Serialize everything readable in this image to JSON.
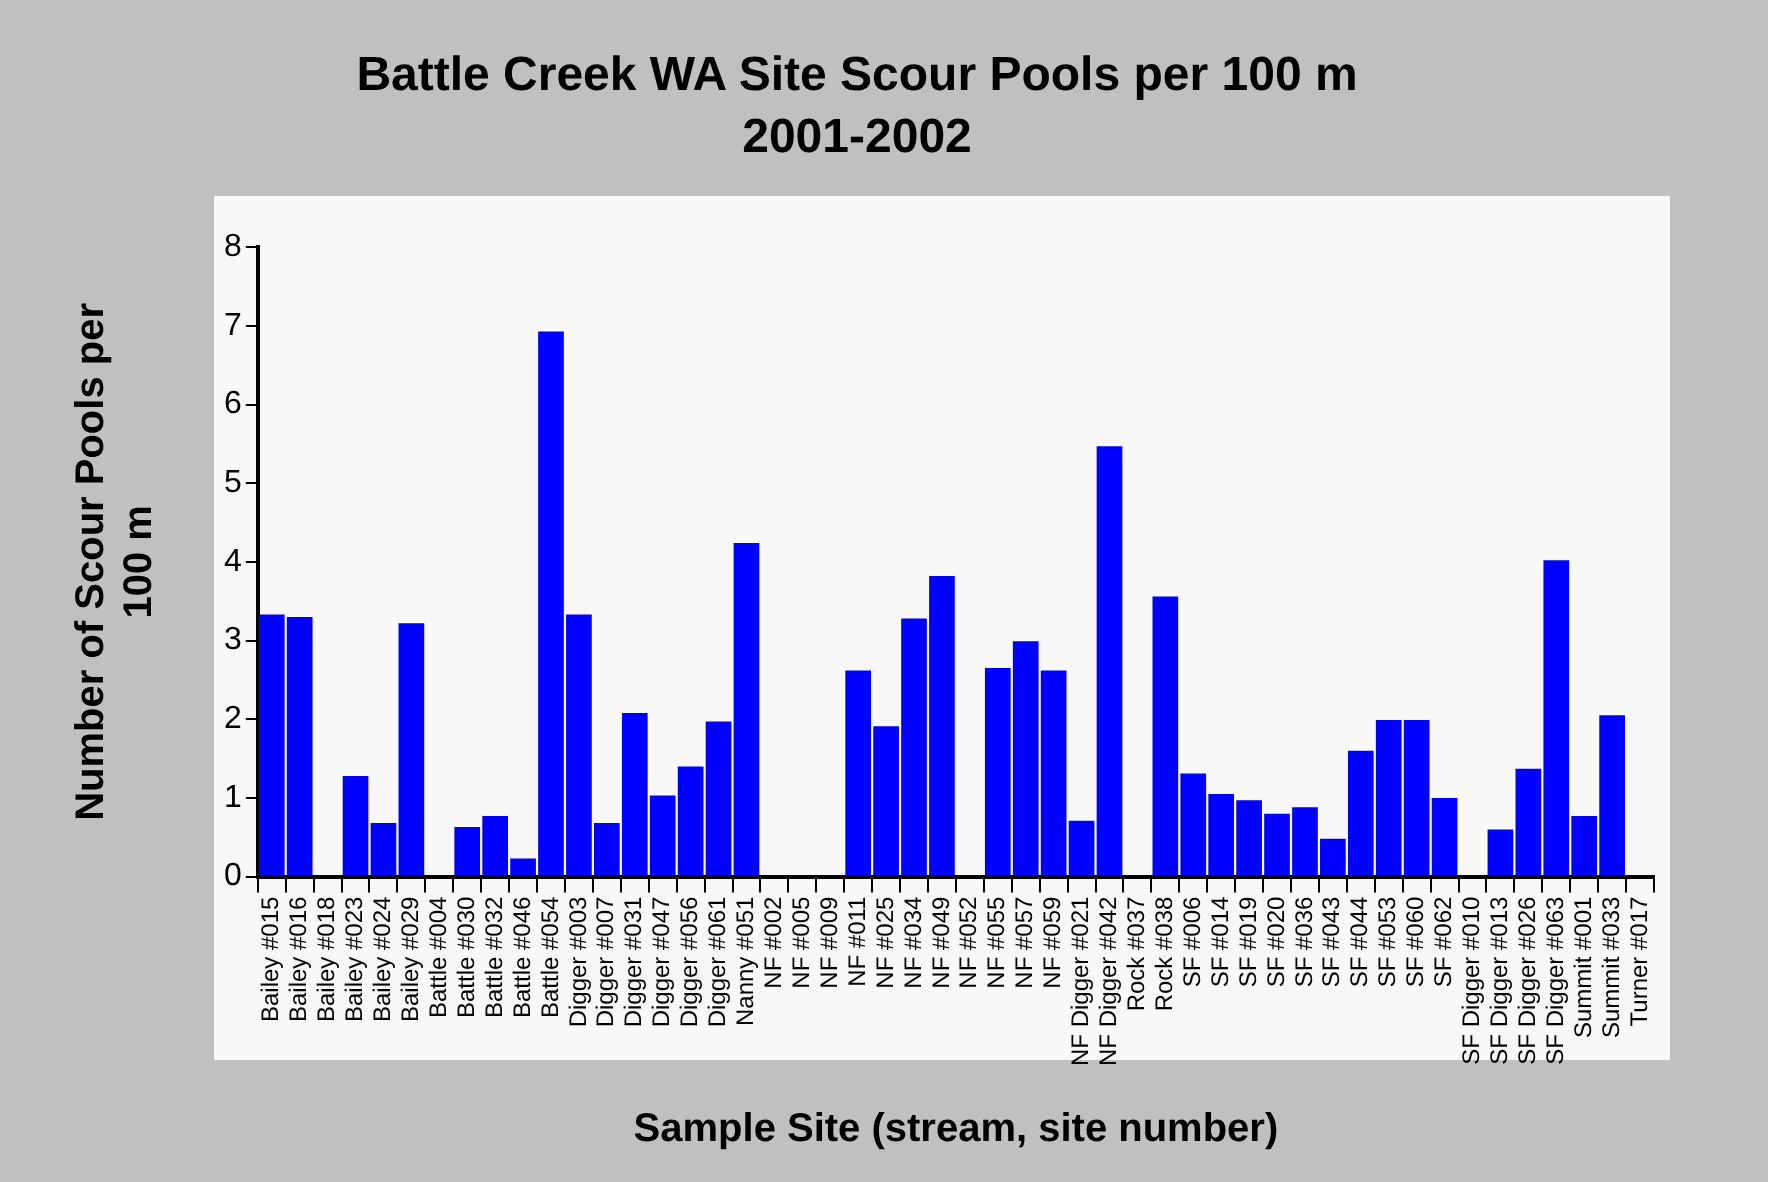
{
  "chart_data": {
    "type": "bar",
    "title": "Battle Creek WA Site Scour Pools per 100 m",
    "subtitle": "2001-2002",
    "xlabel": "Sample Site (stream, site number)",
    "ylabel": "Number of Scour Pools per 100 m",
    "categories": [
      "Bailey #015",
      "Bailey #016",
      "Bailey #018",
      "Bailey #023",
      "Bailey #024",
      "Bailey #029",
      "Battle #004",
      "Battle #030",
      "Battle #032",
      "Battle #046",
      "Battle #054",
      "Digger #003",
      "Digger #007",
      "Digger #031",
      "Digger #047",
      "Digger #056",
      "Digger #061",
      "Nanny #051",
      "NF #002",
      "NF #005",
      "NF #009",
      "NF #011",
      "NF #025",
      "NF #034",
      "NF #049",
      "NF #052",
      "NF #055",
      "NF #057",
      "NF #059",
      "NF Digger #021",
      "NF Digger #042",
      "Rock #037",
      "Rock #038",
      "SF #006",
      "SF #014",
      "SF #019",
      "SF #020",
      "SF #036",
      "SF #043",
      "SF #044",
      "SF #053",
      "SF #060",
      "SF #062",
      "SF Digger #010",
      "SF Digger #013",
      "SF Digger #026",
      "SF Digger #063",
      "Summit #001",
      "Summit #033",
      "Turner #017"
    ],
    "values": [
      3.33,
      3.3,
      0,
      1.28,
      0.68,
      3.22,
      0,
      0.63,
      0.77,
      0.23,
      6.93,
      3.33,
      0.68,
      2.08,
      1.03,
      1.4,
      1.97,
      4.24,
      0,
      0,
      0,
      2.62,
      1.91,
      3.28,
      3.82,
      0,
      2.65,
      2.99,
      2.62,
      0.71,
      5.47,
      0,
      3.56,
      1.31,
      1.05,
      0.97,
      0.8,
      0.88,
      0.48,
      1.6,
      1.99,
      1.99,
      1.0,
      0,
      0.6,
      1.37,
      4.02,
      0.77,
      2.05,
      0
    ],
    "color": "#0000ff",
    "ylim": [
      0,
      8
    ],
    "yticks": [
      0,
      1,
      2,
      3,
      4,
      5,
      6,
      7,
      8
    ],
    "grid": false,
    "legend": false
  }
}
